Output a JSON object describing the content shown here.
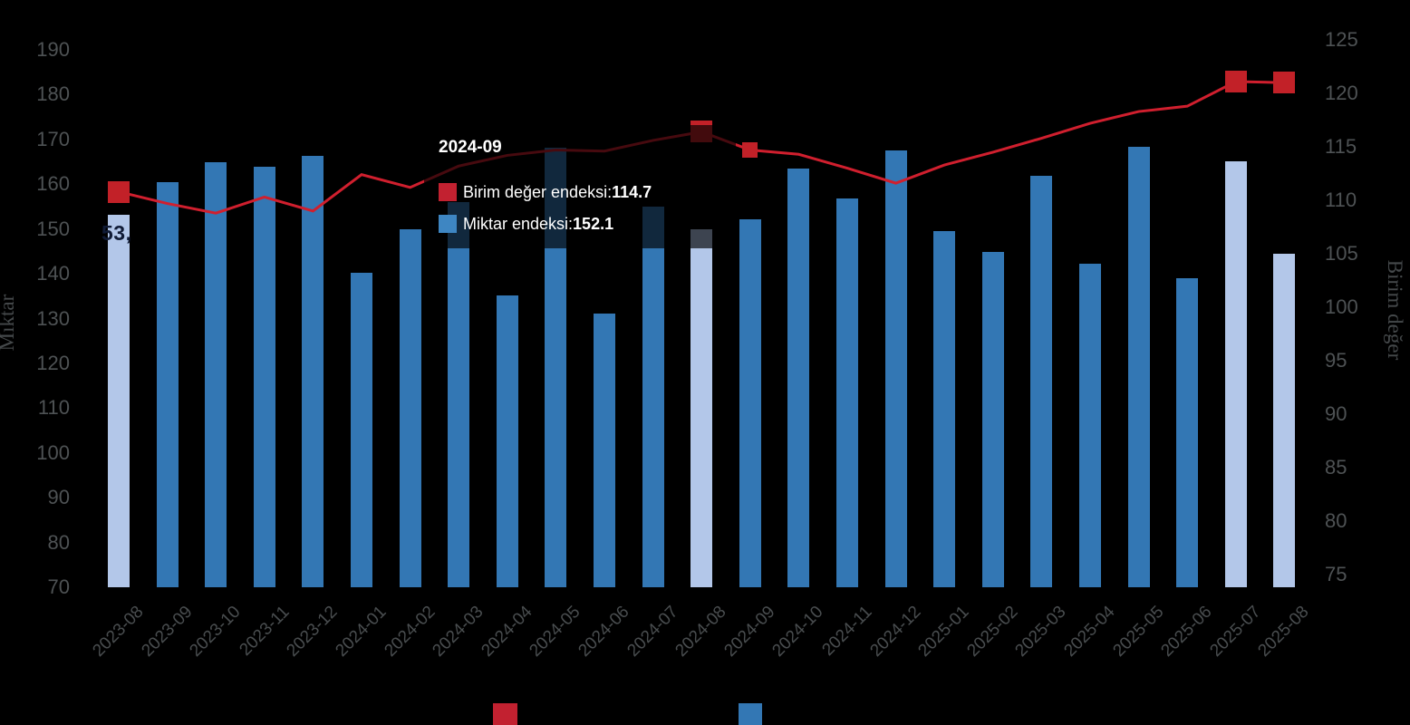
{
  "chart": {
    "background": "#000000",
    "tooltip": {
      "title": "2024-09",
      "rows": [
        {
          "label": "Birim değer endeksi: ",
          "value": "114.7",
          "swatch": "#c22130"
        },
        {
          "label": "Miktar endeksi: ",
          "value": "152.1",
          "swatch": "#3e86c2"
        }
      ]
    },
    "first_bar_data_label": "53,",
    "legend": {
      "swatches": [
        {
          "series": "Birim değer endeksi",
          "color": "#c22130"
        },
        {
          "series": "Miktar endeksi",
          "color": "#3377b4"
        }
      ]
    }
  },
  "chart_data": {
    "type": "combo",
    "title": "",
    "categories": [
      "2023-08",
      "2023-09",
      "2023-10",
      "2023-11",
      "2023-12",
      "2024-01",
      "2024-02",
      "2024-03",
      "2024-04",
      "2024-05",
      "2024-06",
      "2024-07",
      "2024-08",
      "2024-09",
      "2024-10",
      "2024-11",
      "2024-12",
      "2025-01",
      "2025-02",
      "2025-03",
      "2025-04",
      "2025-05",
      "2025-06",
      "2025-07",
      "2025-08"
    ],
    "series": [
      {
        "name": "Miktar endeksi",
        "type": "bar",
        "y_axis": "left",
        "color": "#3377b4",
        "highlight_color": "#b3c7e9",
        "highlighted_categories": [
          "2023-08",
          "2024-08",
          "2025-07",
          "2025-08"
        ],
        "values": [
          153.2,
          160.5,
          165.0,
          163.8,
          166.3,
          140.2,
          149.9,
          156.0,
          135.1,
          168.2,
          131.1,
          155.0,
          150.0,
          152.1,
          163.5,
          156.8,
          167.6,
          149.5,
          144.9,
          161.8,
          142.2,
          168.3,
          139.0,
          165.1,
          144.5
        ]
      },
      {
        "name": "Birim değer endeksi",
        "type": "line",
        "y_axis": "right",
        "color": "#d01f2e",
        "marker_color": "#c22128",
        "marker_categories": [
          "2023-08",
          "2024-08",
          "2025-07",
          "2025-08"
        ],
        "hovered_category": "2024-09",
        "values": [
          110.8,
          109.7,
          108.8,
          110.3,
          109.0,
          112.4,
          111.2,
          113.2,
          114.2,
          114.7,
          114.6,
          115.6,
          116.4,
          114.7,
          114.3,
          113.0,
          111.6,
          113.3,
          114.5,
          115.8,
          117.2,
          118.3,
          118.8,
          121.1,
          121.0
        ]
      }
    ],
    "left_axis": {
      "title": "Mıktar",
      "min": 70,
      "max": 190,
      "tick_step": 10
    },
    "right_axis": {
      "title": "Birim değer",
      "min": 75,
      "max": 125,
      "tick_step": 5
    },
    "grid": false,
    "legend_position": "bottom"
  }
}
